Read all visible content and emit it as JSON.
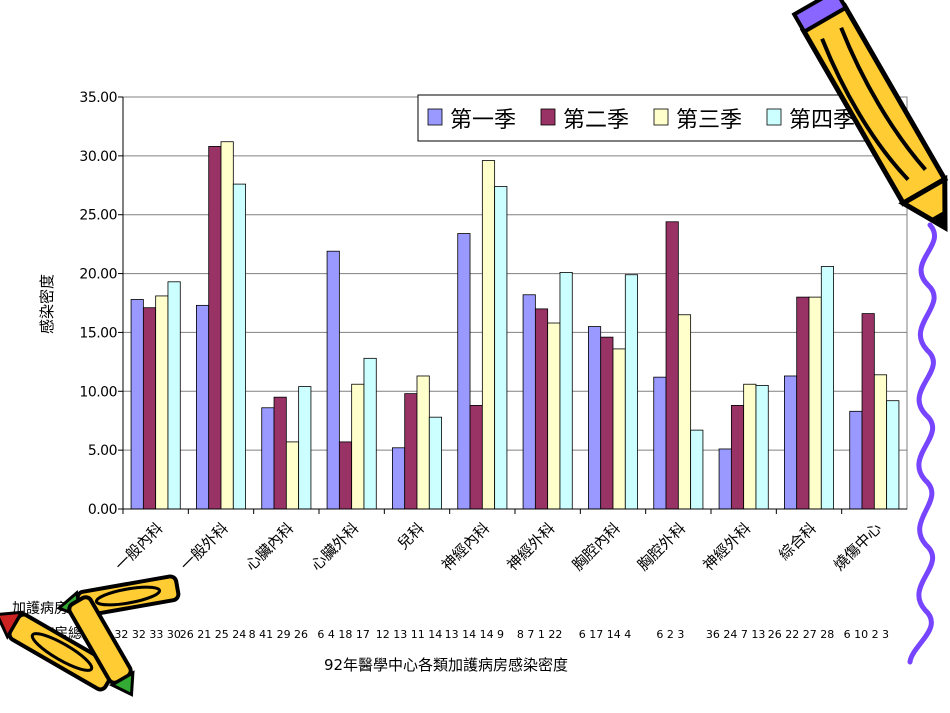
{
  "chart_data": {
    "type": "bar",
    "title": "92年醫學中心各類加護病房感染密度",
    "ylabel": "感染密度",
    "xlabel": "",
    "ylim": [
      0,
      35
    ],
    "ytick_step": 5,
    "ytick_labels": [
      "0.00",
      "5.00",
      "10.00",
      "15.00",
      "20.00",
      "25.00",
      "30.00",
      "35.00"
    ],
    "grid": true,
    "legend_position": "top-right",
    "categories": [
      "一般內科",
      "一般外科",
      "心臟內科",
      "心臟外科",
      "兒科",
      "神經內科",
      "神經外科",
      "胸腔內科",
      "胸腔外科",
      "神經外科",
      "綜合科",
      "燒傷中心"
    ],
    "series": [
      {
        "name": "第一季",
        "color": "#9999ff",
        "values": [
          17.8,
          17.3,
          8.6,
          21.9,
          5.2,
          23.4,
          18.2,
          15.5,
          11.2,
          5.1,
          11.3,
          8.3
        ]
      },
      {
        "name": "第二季",
        "color": "#993366",
        "values": [
          17.1,
          30.8,
          9.5,
          5.7,
          9.8,
          8.8,
          17.0,
          14.6,
          24.4,
          8.8,
          18.0,
          16.6
        ]
      },
      {
        "name": "第三季",
        "color": "#ffffcc",
        "values": [
          18.1,
          31.2,
          5.7,
          10.6,
          11.3,
          29.6,
          15.8,
          13.6,
          16.5,
          10.6,
          18.0,
          11.4
        ]
      },
      {
        "name": "第四季",
        "color": "#ccffff",
        "values": [
          19.3,
          27.6,
          10.4,
          12.8,
          7.8,
          27.4,
          20.1,
          19.9,
          6.7,
          10.5,
          20.6,
          9.2
        ]
      }
    ],
    "row_labels": [
      "加護病房總數",
      "加護病房總數"
    ],
    "row_values": [
      "32 32 33 30",
      "26 21 25 24",
      "8 41 29 26",
      "6  4 18 17",
      "12 13 11 14",
      "13 14 14 9",
      "8 7 1  22",
      "6 17 14  4",
      "6  2  3",
      "36 24  7 13",
      "26 22 27 28",
      "6 10  2  3"
    ]
  },
  "colors": {
    "plot_border": "#808080",
    "gridline": "#808080",
    "bar_outline": "#000000",
    "squiggle": "#7744ff"
  },
  "icons": [
    "pencil-icon-top-right",
    "crayons-icon-bottom-left"
  ]
}
